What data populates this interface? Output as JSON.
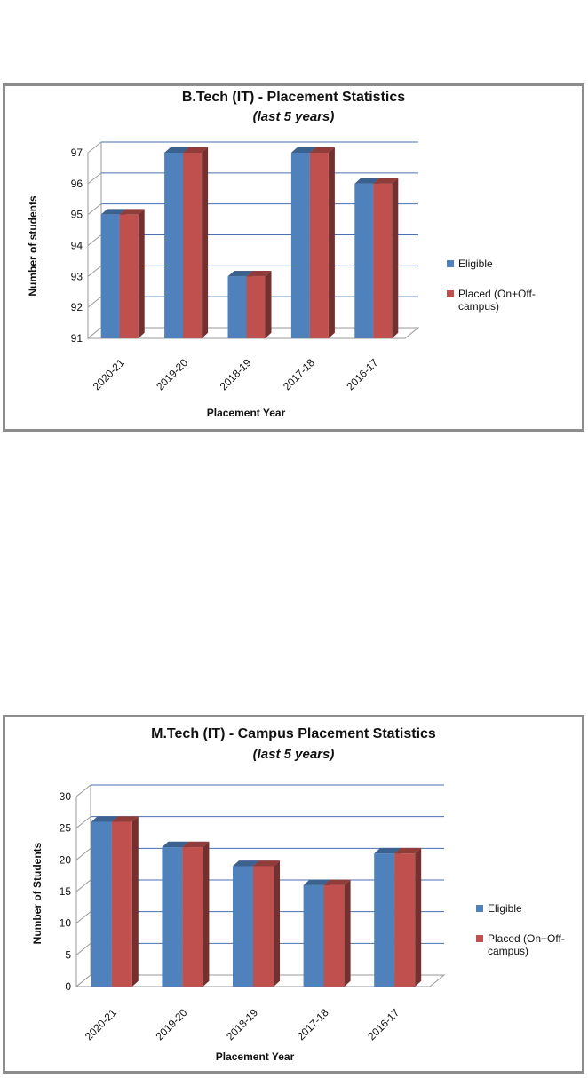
{
  "colors": {
    "eligible": "#4f81bd",
    "placed": "#c0504d",
    "grid": "#4a6fb5"
  },
  "chart_data": [
    {
      "type": "bar",
      "title": "B.Tech (IT) - Placement Statistics",
      "subtitle": "(last 5 years)",
      "xlabel": "Placement Year",
      "ylabel": "Number of students",
      "categories": [
        "2020-21",
        "2019-20",
        "2018-19",
        "2017-18",
        "2016-17"
      ],
      "ylim": [
        91,
        97
      ],
      "yticks": [
        91,
        92,
        93,
        94,
        95,
        96,
        97
      ],
      "grid": true,
      "legend_position": "right",
      "series": [
        {
          "name": "Eligible",
          "values": [
            95,
            97,
            93,
            97,
            96
          ]
        },
        {
          "name": "Placed (On+Off-campus)",
          "values": [
            95,
            97,
            93,
            97,
            96
          ]
        }
      ]
    },
    {
      "type": "bar",
      "title": "M.Tech (IT) - Campus Placement Statistics",
      "subtitle": "(last 5 years)",
      "xlabel": "Placement Year",
      "ylabel": "Number of Students",
      "categories": [
        "2020-21",
        "2019-20",
        "2018-19",
        "2017-18",
        "2016-17"
      ],
      "ylim": [
        0,
        30
      ],
      "yticks": [
        0,
        5,
        10,
        15,
        20,
        25,
        30
      ],
      "grid": true,
      "legend_position": "right",
      "series": [
        {
          "name": "Eligible",
          "values": [
            26,
            22,
            19,
            16,
            21
          ]
        },
        {
          "name": "Placed (On+Off-campus)",
          "values": [
            26,
            22,
            19,
            16,
            21
          ]
        }
      ]
    }
  ]
}
